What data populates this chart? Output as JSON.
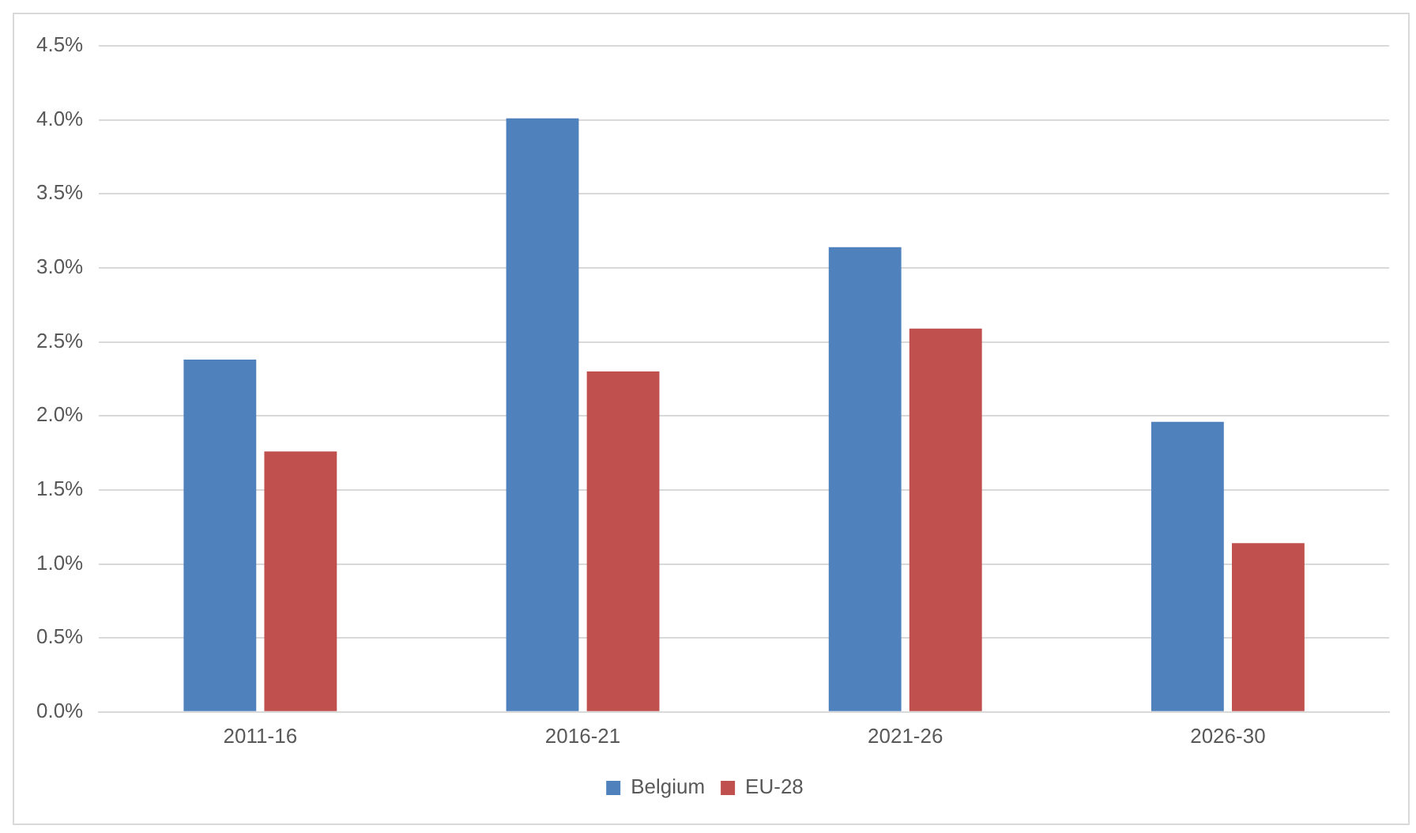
{
  "chart_data": {
    "type": "bar",
    "categories": [
      "2011-16",
      "2016-21",
      "2021-26",
      "2026-30"
    ],
    "series": [
      {
        "name": "Belgium",
        "color": "#4f81bd",
        "values": [
          2.38,
          4.01,
          3.14,
          1.96
        ]
      },
      {
        "name": "EU-28",
        "color": "#c0504d",
        "values": [
          1.76,
          2.3,
          2.59,
          1.14
        ]
      }
    ],
    "ylim": [
      0,
      4.5
    ],
    "yticks": [
      {
        "value": 0,
        "label": "0.0%"
      },
      {
        "value": 0.5,
        "label": "0.5%"
      },
      {
        "value": 1,
        "label": "1.0%"
      },
      {
        "value": 1.5,
        "label": "1.5%"
      },
      {
        "value": 2,
        "label": "2.0%"
      },
      {
        "value": 2.5,
        "label": "2.5%"
      },
      {
        "value": 3,
        "label": "3.0%"
      },
      {
        "value": 3.5,
        "label": "3.5%"
      },
      {
        "value": 4,
        "label": "4.0%"
      },
      {
        "value": 4.5,
        "label": "4.5%"
      }
    ],
    "grid": "y",
    "legend": "bottom"
  }
}
